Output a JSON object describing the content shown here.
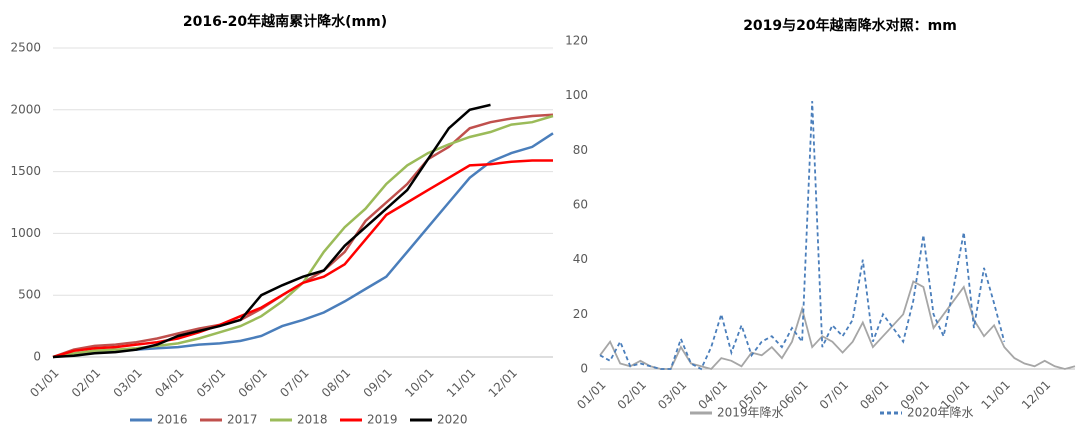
{
  "chart_data": [
    {
      "type": "line",
      "title": "2016-20年越南累计降水(mm)",
      "categories": [
        "01/01",
        null,
        "02/01",
        null,
        "03/01",
        null,
        "04/01",
        null,
        "05/01",
        null,
        "06/01",
        null,
        "07/01",
        null,
        "08/01",
        null,
        "09/01",
        null,
        "10/01",
        null,
        "11/01",
        null,
        "12/01",
        null,
        null
      ],
      "ylim": [
        0,
        2500
      ],
      "yticks": [
        0,
        500,
        1000,
        1500,
        2000,
        2500
      ],
      "grid": true,
      "legend": "bottom",
      "series": [
        {
          "name": "2016",
          "color": "#4a7ebb",
          "style": "solid",
          "values": [
            0,
            20,
            40,
            50,
            60,
            70,
            80,
            100,
            110,
            130,
            170,
            250,
            300,
            360,
            450,
            550,
            650,
            850,
            1050,
            1250,
            1450,
            1580,
            1650,
            1700,
            1810
          ]
        },
        {
          "name": "2017",
          "color": "#c0504d",
          "style": "solid",
          "values": [
            0,
            60,
            90,
            100,
            120,
            150,
            190,
            230,
            260,
            300,
            390,
            500,
            600,
            700,
            850,
            1100,
            1250,
            1400,
            1600,
            1700,
            1850,
            1900,
            1930,
            1950,
            1960
          ]
        },
        {
          "name": "2018",
          "color": "#9bbb59",
          "style": "solid",
          "values": [
            0,
            30,
            50,
            60,
            70,
            90,
            110,
            150,
            200,
            250,
            330,
            450,
            600,
            850,
            1050,
            1200,
            1400,
            1550,
            1650,
            1720,
            1780,
            1820,
            1880,
            1900,
            1950
          ]
        },
        {
          "name": "2019",
          "color": "#ff0000",
          "style": "solid",
          "values": [
            0,
            50,
            70,
            80,
            100,
            120,
            150,
            200,
            260,
            330,
            400,
            500,
            600,
            650,
            750,
            950,
            1150,
            1250,
            1350,
            1450,
            1550,
            1560,
            1580,
            1590,
            1590
          ]
        },
        {
          "name": "2020",
          "color": "#000000",
          "style": "solid",
          "values": [
            0,
            10,
            30,
            40,
            60,
            100,
            170,
            210,
            250,
            300,
            500,
            580,
            650,
            700,
            900,
            1050,
            1200,
            1350,
            1600,
            1850,
            2000,
            2040,
            null,
            null,
            null
          ]
        }
      ]
    },
    {
      "type": "line",
      "title": "2019与20年越南降水对照：mm",
      "categories": [
        "01/01",
        null,
        null,
        null,
        "02/01",
        null,
        null,
        null,
        "03/01",
        null,
        null,
        null,
        "04/01",
        null,
        null,
        null,
        "05/01",
        null,
        null,
        null,
        "06/01",
        null,
        null,
        null,
        "07/01",
        null,
        null,
        null,
        "08/01",
        null,
        null,
        null,
        "09/01",
        null,
        null,
        null,
        "10/01",
        null,
        null,
        null,
        "11/01",
        null,
        null,
        null,
        "12/01",
        null,
        null,
        null
      ],
      "ylim": [
        0,
        120
      ],
      "yticks": [
        0,
        20,
        40,
        60,
        80,
        100,
        120
      ],
      "grid": false,
      "legend": "bottom",
      "series": [
        {
          "name": "2019年降水",
          "color": "#a6a6a6",
          "style": "solid",
          "values": [
            5,
            10,
            2,
            1,
            3,
            1,
            0,
            0,
            8,
            2,
            1,
            0,
            4,
            3,
            1,
            6,
            5,
            8,
            4,
            10,
            22,
            8,
            12,
            10,
            6,
            10,
            17,
            8,
            12,
            16,
            20,
            32,
            30,
            15,
            20,
            25,
            30,
            18,
            12,
            16,
            8,
            4,
            2,
            1,
            3,
            1,
            0,
            1
          ]
        },
        {
          "name": "2020年降水",
          "color": "#4a7ebb",
          "style": "dashed",
          "values": [
            5,
            3,
            10,
            1,
            2,
            1,
            0,
            0,
            11,
            2,
            0,
            8,
            20,
            6,
            16,
            5,
            10,
            12,
            8,
            15,
            10,
            98,
            8,
            16,
            12,
            18,
            40,
            10,
            20,
            15,
            10,
            25,
            49,
            20,
            12,
            30,
            50,
            15,
            37,
            24,
            10,
            null,
            null,
            null,
            null,
            null,
            null,
            null
          ]
        }
      ]
    }
  ]
}
